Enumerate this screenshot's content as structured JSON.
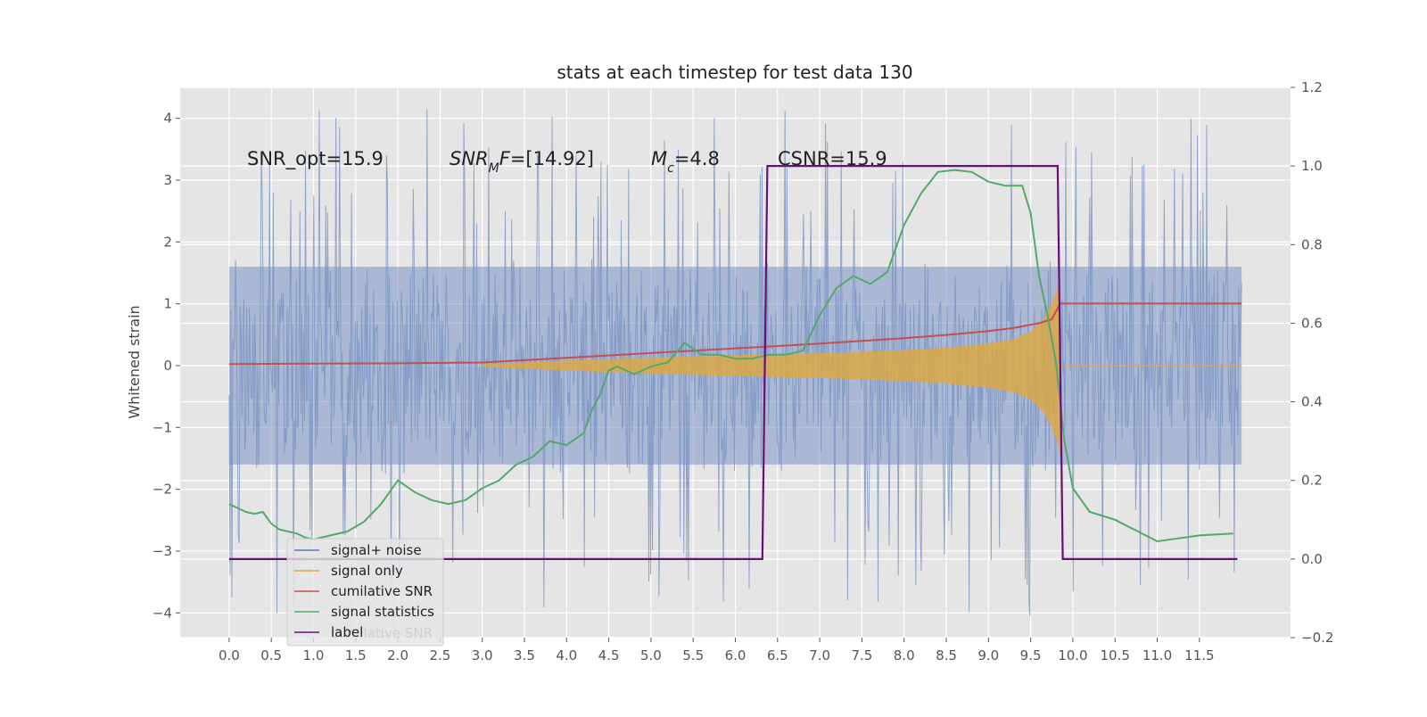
{
  "chart_data": {
    "type": "line",
    "title": "stats at each timestep for test data 130",
    "ylabel": "Whitened strain",
    "xlabel": "",
    "xlim": [
      -0.58,
      12.58
    ],
    "ylim": [
      -4.4,
      4.5
    ],
    "y2lim": [
      -0.2,
      1.2
    ],
    "grid": true,
    "legend_placement": "lower-left",
    "x_ticks": [
      "0.0",
      "0.5",
      "1.0",
      "1.5",
      "2.0",
      "2.5",
      "3.0",
      "3.5",
      "4.0",
      "4.5",
      "5.0",
      "5.5",
      "6.0",
      "6.5",
      "7.0",
      "7.5",
      "8.0",
      "8.5",
      "9.0",
      "9.5",
      "10.0",
      "10.5",
      "11.0",
      "11.5"
    ],
    "y_ticks": [
      "−4",
      "−3",
      "−2",
      "−1",
      "0",
      "1",
      "2",
      "3",
      "4"
    ],
    "y2_ticks": [
      "−0.2",
      "0.0",
      "0.2",
      "0.4",
      "0.6",
      "0.8",
      "1.0",
      "1.2"
    ],
    "annotations": [
      "SNR_opt=15.9",
      "SNR_MF=[14.92]",
      "M_c=4.8",
      "CSNR=15.9"
    ],
    "legend": [
      "signal+ noise",
      "signal only",
      "cumilative SNR",
      "signal statistics",
      "label"
    ],
    "legend_ghost_text": "cumilative SNR",
    "series": [
      {
        "name": "signal+ noise",
        "color": "#7a94c4",
        "axis": "left",
        "envelope": {
          "x": [
            0,
            12
          ],
          "typical_high": 1.6,
          "typical_low": -1.6,
          "peak_high": 4.15,
          "peak_low": -4.05
        }
      },
      {
        "name": "signal only",
        "color": "#dba845",
        "axis": "left",
        "envelope": {
          "x": [
            3.0,
            4.0,
            5.0,
            6.0,
            7.0,
            8.0,
            8.5,
            9.0,
            9.3,
            9.5,
            9.65,
            9.75,
            9.82,
            9.85
          ],
          "amplitude": [
            0.02,
            0.08,
            0.13,
            0.17,
            0.2,
            0.25,
            0.29,
            0.36,
            0.43,
            0.55,
            0.75,
            1.0,
            1.25,
            1.45
          ]
        }
      },
      {
        "name": "cumilative SNR",
        "color": "#c44e52",
        "axis": "right",
        "x": [
          0.0,
          1.0,
          2.0,
          3.0,
          4.0,
          5.0,
          6.0,
          6.5,
          7.0,
          7.5,
          8.0,
          8.5,
          9.0,
          9.3,
          9.6,
          9.75,
          9.85,
          10.0,
          11.0,
          12.0
        ],
        "values": [
          0.496,
          0.497,
          0.498,
          0.5,
          0.512,
          0.524,
          0.536,
          0.542,
          0.548,
          0.555,
          0.562,
          0.57,
          0.58,
          0.588,
          0.6,
          0.61,
          0.65,
          0.65,
          0.65,
          0.65
        ]
      },
      {
        "name": "signal statistics",
        "color": "#55a868",
        "axis": "right",
        "x": [
          0.0,
          0.1,
          0.2,
          0.3,
          0.4,
          0.5,
          0.6,
          0.7,
          0.8,
          0.9,
          1.0,
          1.2,
          1.4,
          1.6,
          1.8,
          2.0,
          2.2,
          2.4,
          2.6,
          2.8,
          3.0,
          3.2,
          3.4,
          3.6,
          3.8,
          4.0,
          4.2,
          4.3,
          4.4,
          4.5,
          4.6,
          4.8,
          5.0,
          5.2,
          5.4,
          5.6,
          5.8,
          6.0,
          6.2,
          6.4,
          6.6,
          6.8,
          7.0,
          7.2,
          7.4,
          7.6,
          7.8,
          8.0,
          8.2,
          8.4,
          8.6,
          8.8,
          9.0,
          9.2,
          9.4,
          9.5,
          9.6,
          9.7,
          9.8,
          9.9,
          10.0,
          10.2,
          10.5,
          11.0,
          11.5,
          11.9
        ],
        "values": [
          0.14,
          0.13,
          0.12,
          0.115,
          0.12,
          0.09,
          0.075,
          0.07,
          0.065,
          0.055,
          0.05,
          0.06,
          0.07,
          0.095,
          0.14,
          0.2,
          0.17,
          0.15,
          0.14,
          0.15,
          0.18,
          0.2,
          0.24,
          0.26,
          0.3,
          0.29,
          0.32,
          0.38,
          0.42,
          0.48,
          0.49,
          0.47,
          0.49,
          0.5,
          0.55,
          0.52,
          0.52,
          0.51,
          0.51,
          0.52,
          0.52,
          0.53,
          0.62,
          0.69,
          0.72,
          0.7,
          0.73,
          0.85,
          0.93,
          0.985,
          0.99,
          0.985,
          0.96,
          0.95,
          0.95,
          0.88,
          0.72,
          0.62,
          0.5,
          0.3,
          0.18,
          0.12,
          0.1,
          0.045,
          0.06,
          0.065
        ]
      },
      {
        "name": "label",
        "color": "#6a0e7a",
        "axis": "right",
        "x": [
          0.0,
          6.32,
          6.38,
          9.82,
          9.88,
          11.95
        ],
        "values": [
          0.0,
          0.0,
          1.0,
          1.0,
          0.0,
          0.0
        ]
      }
    ]
  }
}
